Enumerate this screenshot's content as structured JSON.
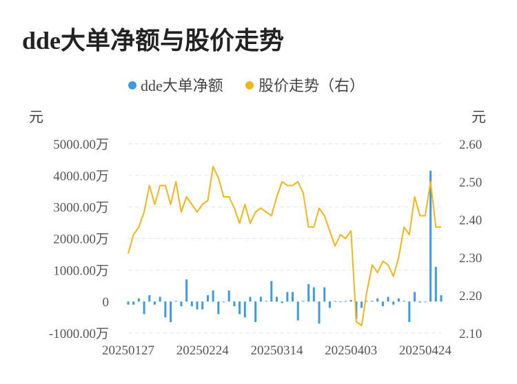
{
  "chart_data": {
    "type": "bar+line",
    "title": "dde大单净额与股价走势",
    "legend": {
      "placement": "top",
      "items": [
        {
          "name": "dde大单净额",
          "color": "#3a9be6"
        },
        {
          "name": "股价走势（右）",
          "color": "#f5b417"
        }
      ]
    },
    "grid": true,
    "left_axis": {
      "unit": "元",
      "range": [
        -1000,
        5000
      ],
      "ticks": [
        {
          "v": -1000,
          "label": "-1000.00万"
        },
        {
          "v": 0,
          "label": "0"
        },
        {
          "v": 1000,
          "label": "1000.00万"
        },
        {
          "v": 2000,
          "label": "2000.00万"
        },
        {
          "v": 3000,
          "label": "3000.00万"
        },
        {
          "v": 4000,
          "label": "4000.00万"
        },
        {
          "v": 5000,
          "label": "5000.00万"
        }
      ]
    },
    "right_axis": {
      "unit": "元",
      "range": [
        2.1,
        2.6
      ],
      "ticks": [
        {
          "v": 2.1,
          "label": "2.10"
        },
        {
          "v": 2.2,
          "label": "2.20"
        },
        {
          "v": 2.3,
          "label": "2.30"
        },
        {
          "v": 2.4,
          "label": "2.40"
        },
        {
          "v": 2.5,
          "label": "2.50"
        },
        {
          "v": 2.6,
          "label": "2.60"
        }
      ]
    },
    "x_labels": [
      {
        "i": 0,
        "label": "20250127"
      },
      {
        "i": 14,
        "label": "20250224"
      },
      {
        "i": 28,
        "label": "20250314"
      },
      {
        "i": 42,
        "label": "20250403"
      },
      {
        "i": 56,
        "label": "20250424"
      }
    ],
    "series": [
      {
        "name": "dde大单净额",
        "kind": "bar",
        "axis": "left",
        "color": "#3a9be6",
        "values": [
          -100,
          -100,
          100,
          -400,
          200,
          -100,
          150,
          -500,
          -650,
          20,
          -150,
          700,
          -150,
          -250,
          -250,
          200,
          350,
          -400,
          -20,
          350,
          -150,
          -400,
          -500,
          150,
          -650,
          150,
          20,
          650,
          150,
          -50,
          300,
          300,
          -600,
          20,
          550,
          450,
          -700,
          450,
          -200,
          20,
          -20,
          20,
          50,
          -550,
          -200,
          20,
          20,
          100,
          -150,
          150,
          -100,
          100,
          20,
          -650,
          300,
          -30,
          -20,
          4150,
          1100,
          200
        ]
      },
      {
        "name": "股价走势（右）",
        "kind": "line",
        "axis": "right",
        "color": "#f5b417",
        "values": [
          2.31,
          2.36,
          2.38,
          2.42,
          2.49,
          2.44,
          2.49,
          2.49,
          2.44,
          2.5,
          2.42,
          2.46,
          2.44,
          2.42,
          2.44,
          2.45,
          2.54,
          2.51,
          2.46,
          2.46,
          2.43,
          2.39,
          2.44,
          2.39,
          2.42,
          2.43,
          2.42,
          2.41,
          2.46,
          2.5,
          2.49,
          2.49,
          2.5,
          2.47,
          2.38,
          2.38,
          2.43,
          2.41,
          2.37,
          2.33,
          2.36,
          2.35,
          2.37,
          2.13,
          2.12,
          2.21,
          2.28,
          2.26,
          2.29,
          2.28,
          2.25,
          2.3,
          2.38,
          2.36,
          2.46,
          2.41,
          2.41,
          2.5,
          2.38,
          2.38
        ]
      }
    ]
  }
}
